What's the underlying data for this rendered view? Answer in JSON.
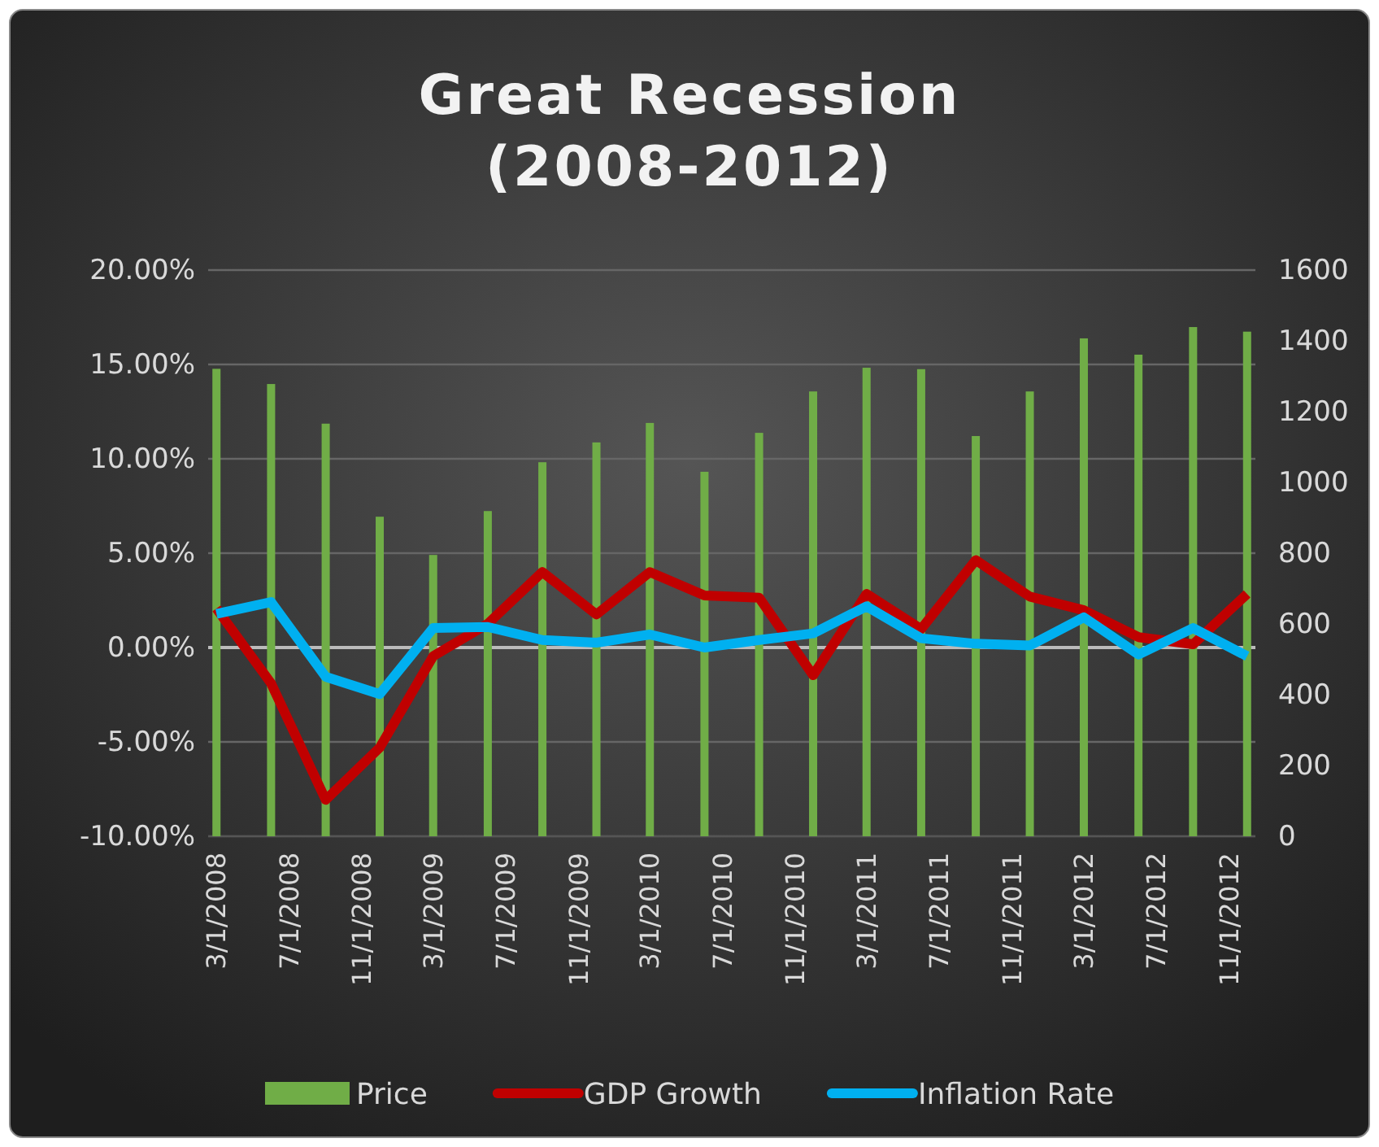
{
  "chart_data": {
    "type": "line",
    "title": "Great Recession (2008-2012)",
    "x": [
      "2008-03-01",
      "2008-06-01",
      "2008-09-01",
      "2008-12-01",
      "2009-03-01",
      "2009-06-01",
      "2009-09-01",
      "2009-12-01",
      "2010-03-01",
      "2010-06-01",
      "2010-09-01",
      "2010-12-01",
      "2011-03-01",
      "2011-06-01",
      "2011-09-01",
      "2011-12-01",
      "2012-03-01",
      "2012-06-01",
      "2012-09-01",
      "2012-12-01"
    ],
    "xlim": [
      "2008-02-16",
      "2012-12-15"
    ],
    "xticks": [
      {
        "value": "2008-03-01",
        "label": "3/1/2008"
      },
      {
        "value": "2008-07-01",
        "label": "7/1/2008"
      },
      {
        "value": "2008-11-01",
        "label": "11/1/2008"
      },
      {
        "value": "2009-03-01",
        "label": "3/1/2009"
      },
      {
        "value": "2009-07-01",
        "label": "7/1/2009"
      },
      {
        "value": "2009-11-01",
        "label": "11/1/2009"
      },
      {
        "value": "2010-03-01",
        "label": "3/1/2010"
      },
      {
        "value": "2010-07-01",
        "label": "7/1/2010"
      },
      {
        "value": "2010-11-01",
        "label": "11/1/2010"
      },
      {
        "value": "2011-03-01",
        "label": "3/1/2011"
      },
      {
        "value": "2011-07-01",
        "label": "7/1/2011"
      },
      {
        "value": "2011-11-01",
        "label": "11/1/2011"
      },
      {
        "value": "2012-03-01",
        "label": "3/1/2012"
      },
      {
        "value": "2012-07-01",
        "label": "7/1/2012"
      },
      {
        "value": "2012-11-01",
        "label": "11/1/2012"
      }
    ],
    "ylim": [
      -10,
      20
    ],
    "yticks": [
      {
        "value": -10,
        "label": "-10.00%"
      },
      {
        "value": -5,
        "label": "-5.00%"
      },
      {
        "value": 0,
        "label": "0.00%"
      },
      {
        "value": 5,
        "label": "5.00%"
      },
      {
        "value": 10,
        "label": "10.00%"
      },
      {
        "value": 15,
        "label": "15.00%"
      },
      {
        "value": 20,
        "label": "20.00%"
      }
    ],
    "y2lim": [
      0,
      1600
    ],
    "y2ticks": [
      0,
      200,
      400,
      600,
      800,
      1000,
      1200,
      1400,
      1600
    ],
    "grid": "y",
    "legend": "bottom",
    "marker": "none",
    "line_style": "solid",
    "series": [
      {
        "name": "Price",
        "type": "bar",
        "axis": "y2",
        "color": "#70ad47",
        "values": [
          1321,
          1278,
          1166,
          903,
          795,
          919,
          1057,
          1113,
          1168,
          1030,
          1140,
          1257,
          1324,
          1320,
          1131,
          1257,
          1407,
          1361,
          1439,
          1426
        ]
      },
      {
        "name": "GDP Growth",
        "color": "#c00000",
        "values": [
          2.07,
          -1.9,
          -8.07,
          -5.3,
          -0.46,
          1.26,
          4.0,
          1.75,
          4.0,
          2.76,
          2.64,
          -1.47,
          2.84,
          0.98,
          4.63,
          2.7,
          1.98,
          0.55,
          0.17,
          2.84
        ]
      },
      {
        "name": "Inflation Rate",
        "color": "#00b0f0",
        "values": [
          1.78,
          2.41,
          -1.55,
          -2.47,
          1.03,
          1.09,
          0.4,
          0.26,
          0.69,
          0,
          0.4,
          0.75,
          2.18,
          0.49,
          0.2,
          0.11,
          1.6,
          -0.37,
          1.03,
          -0.46
        ]
      }
    ]
  }
}
